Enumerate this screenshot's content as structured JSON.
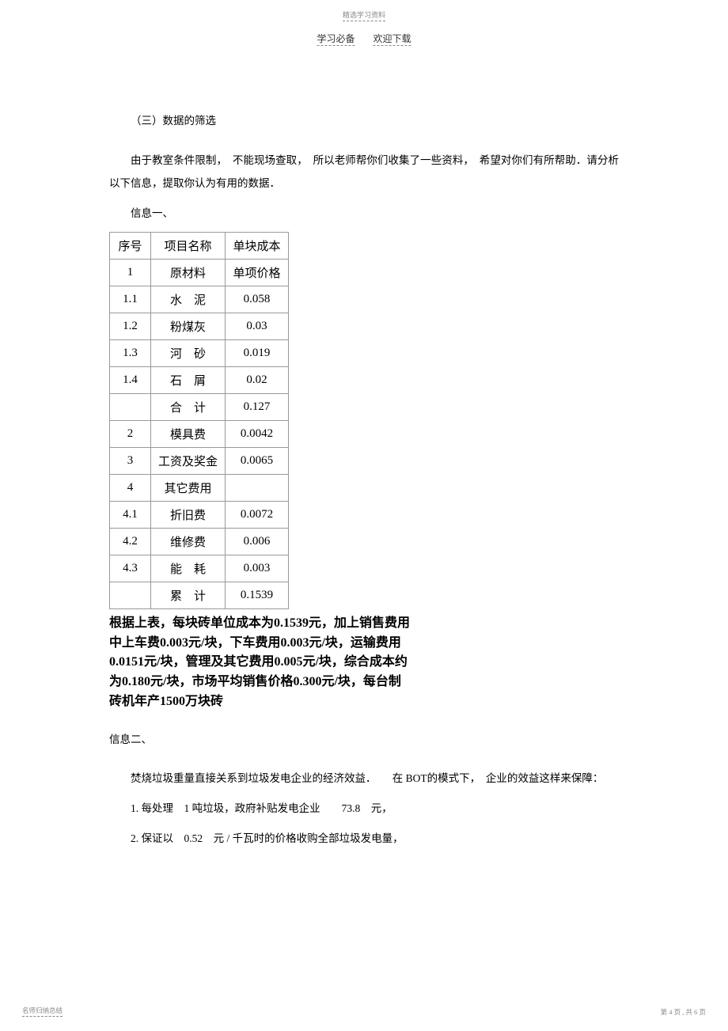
{
  "header": {
    "top": "精选学习资料",
    "sub_left": "学习必备",
    "sub_right": "欢迎下载"
  },
  "section": {
    "title": "（三）数据的筛选",
    "intro": "由于教室条件限制，　不能现场查取，　所以老师帮你们收集了一些资料，　希望对你们有所帮助．请分析以下信息，提取你认为有用的数据．",
    "info1_label": "信息一、"
  },
  "table": {
    "headers": {
      "c1": "序号",
      "c2": "项目名称",
      "c3": "单块成本"
    },
    "rows": [
      {
        "c1": "1",
        "c2": "原材料",
        "c3": "单项价格"
      },
      {
        "c1": "1.1",
        "c2": "水　泥",
        "c3": "0.058"
      },
      {
        "c1": "1.2",
        "c2": "粉煤灰",
        "c3": "0.03"
      },
      {
        "c1": "1.3",
        "c2": "河　砂",
        "c3": "0.019"
      },
      {
        "c1": "1.4",
        "c2": "石　屑",
        "c3": "0.02"
      },
      {
        "c1": "",
        "c2": "合　计",
        "c3": "0.127"
      },
      {
        "c1": "2",
        "c2": "模具费",
        "c3": "0.0042"
      },
      {
        "c1": "3",
        "c2": "工资及奖金",
        "c3": "0.0065"
      },
      {
        "c1": "4",
        "c2": "其它费用",
        "c3": ""
      },
      {
        "c1": "4.1",
        "c2": "折旧费",
        "c3": "0.0072"
      },
      {
        "c1": "4.2",
        "c2": "维修费",
        "c3": "0.006"
      },
      {
        "c1": "4.3",
        "c2": "能　耗",
        "c3": "0.003"
      },
      {
        "c1": "",
        "c2": "累　计",
        "c3": "0.1539"
      }
    ]
  },
  "summary": "根据上表，每块砖单位成本为0.1539元，加上销售费用中上车费0.003元/块，下车费用0.003元/块，运输费用0.0151元/块，管理及其它费用0.005元/块，综合成本约为0.180元/块，市场平均销售价格0.300元/块，每台制砖机年产1500万块砖",
  "info2": {
    "label": "信息二、",
    "para1": "焚烧垃圾重量直接关系到垃圾发电企业的经济效益．　　在 BOT的模式下，　企业的效益这样来保障：",
    "item1": "1. 每处理　1 吨垃圾，政府补贴发电企业　　73.8　元，",
    "item2": "2. 保证以　0.52　元 / 千瓦时的价格收购全部垃圾发电量，"
  },
  "footer": {
    "left": "名师归纳总结",
    "right": "第 4 页 , 共 6 页"
  }
}
